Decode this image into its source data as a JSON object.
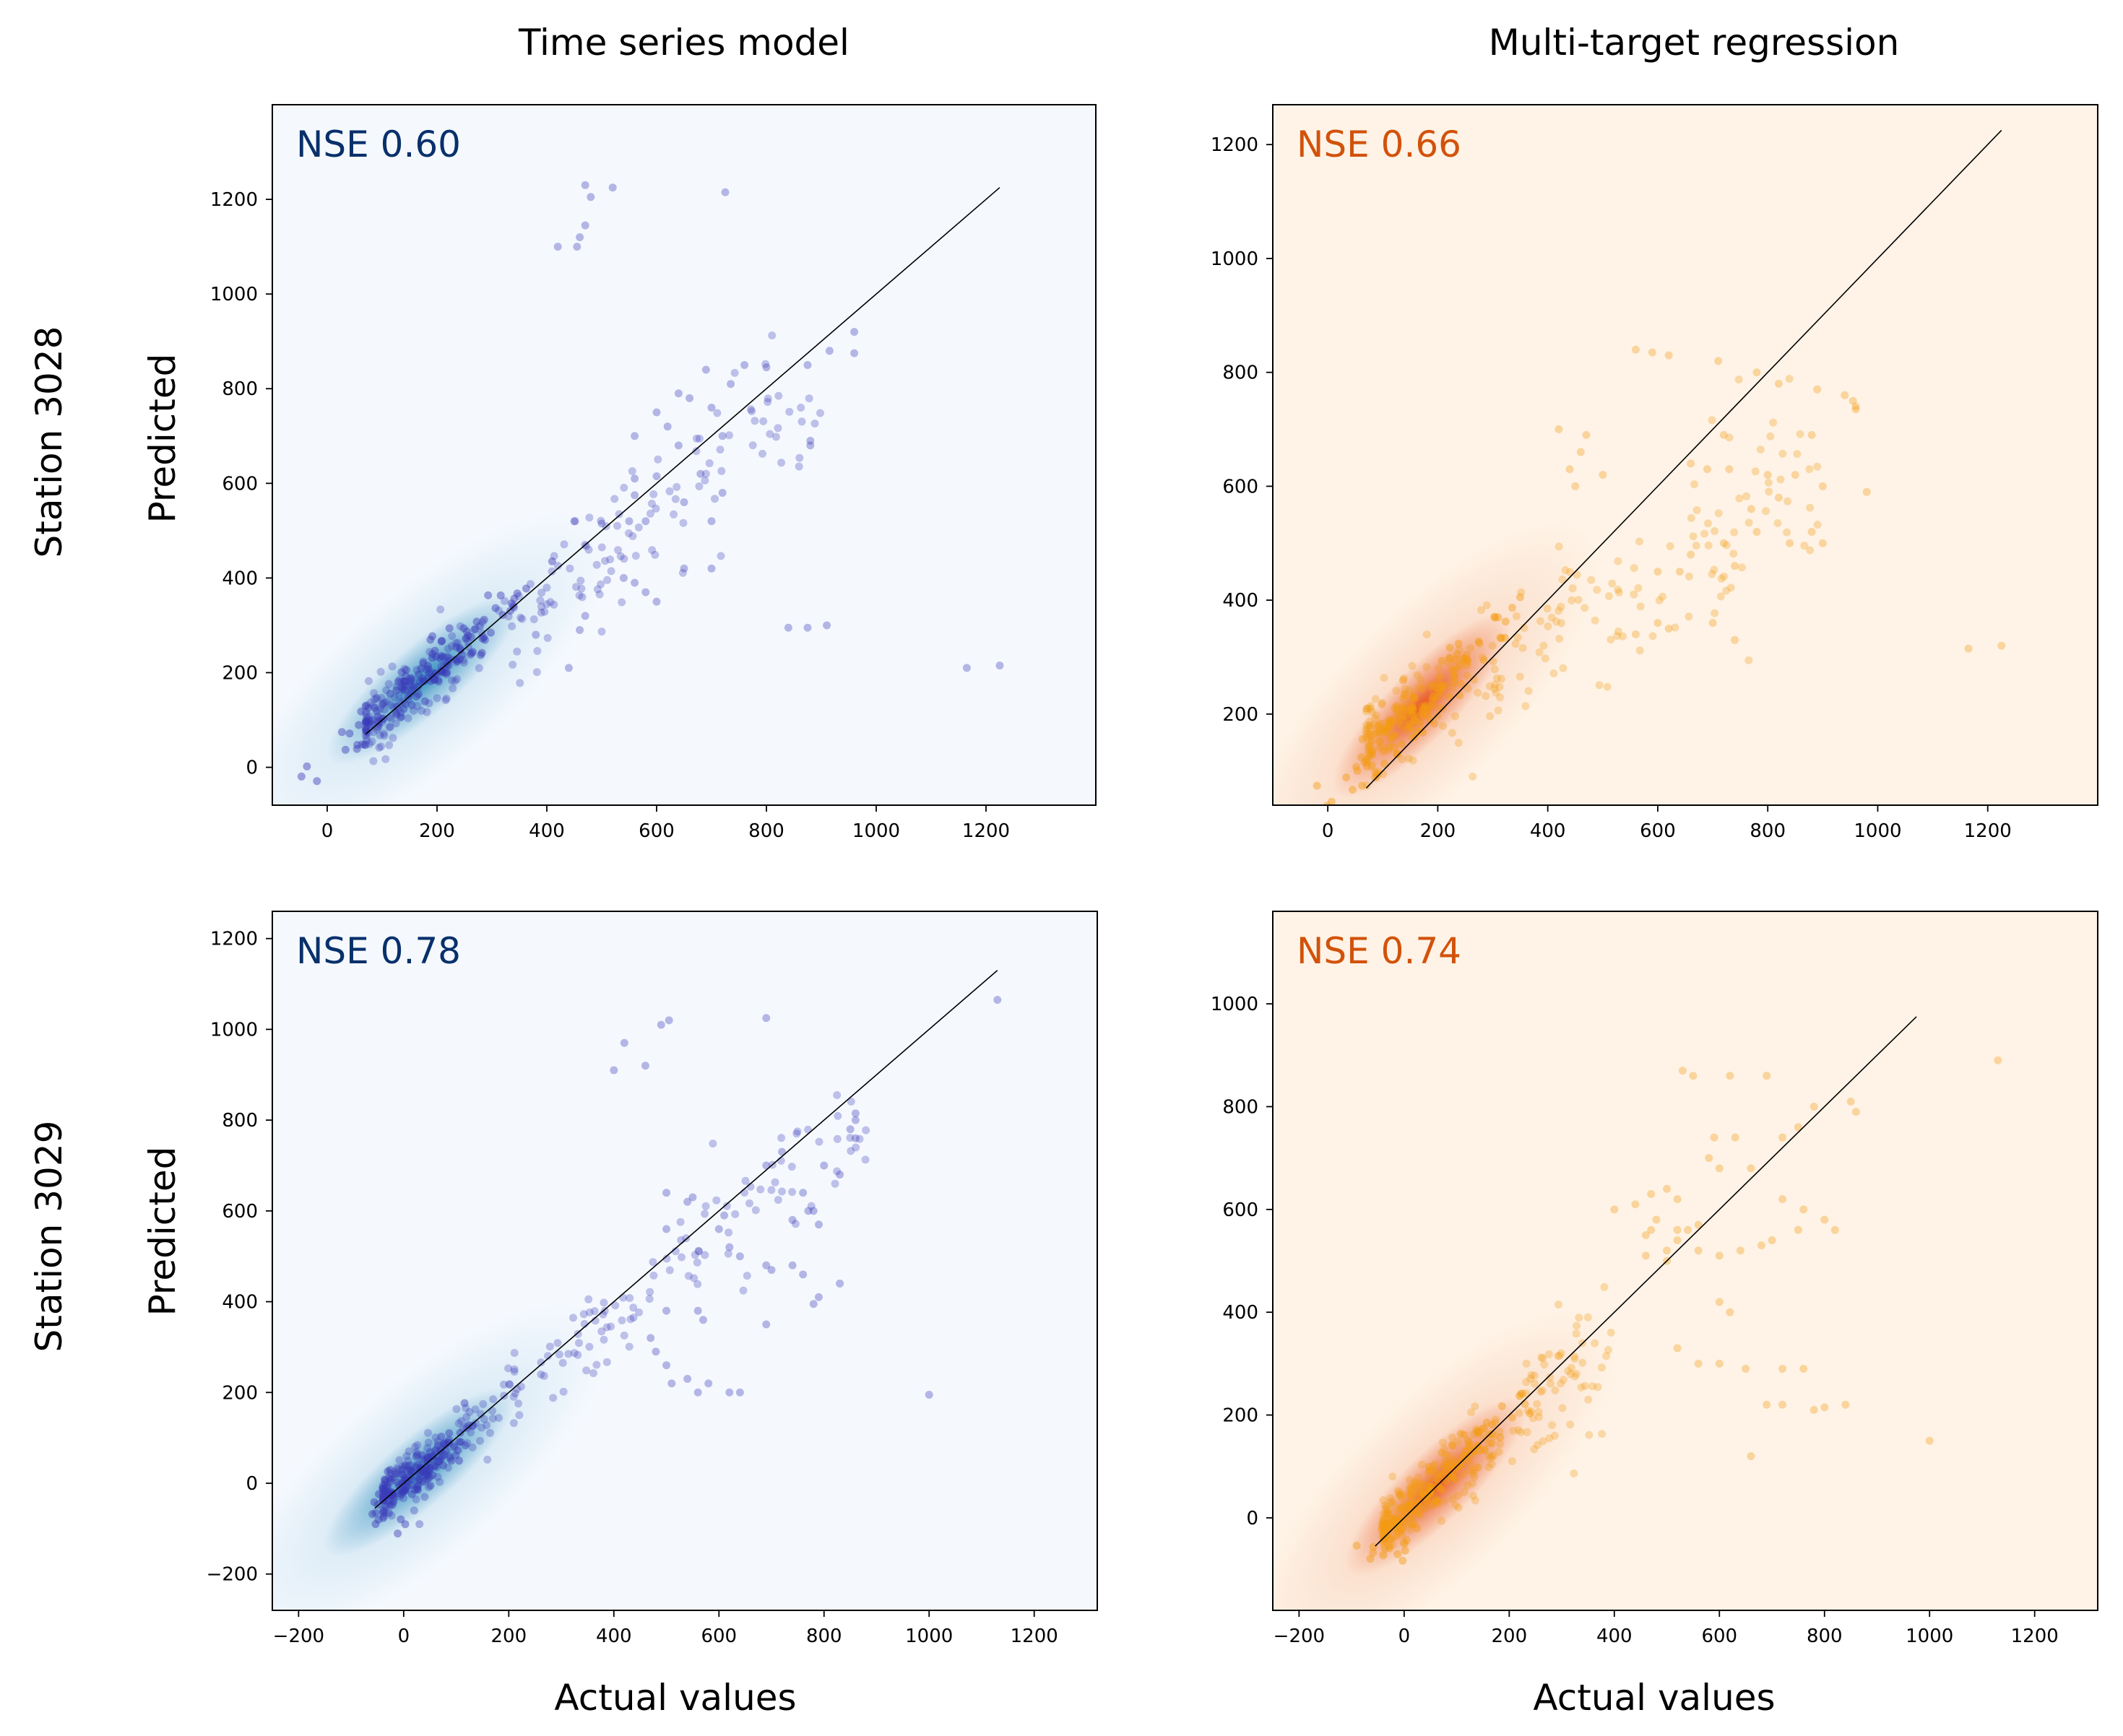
{
  "figure": {
    "column_titles": [
      "Time series model",
      "Multi-target regression"
    ],
    "row_labels": [
      "Station 3028",
      "Station 3029"
    ],
    "xlabel": "Actual values",
    "ylabel": "Predicted"
  },
  "chart_data": [
    {
      "type": "scatter",
      "panel": "top-left",
      "model": "Time series model",
      "station": "Station 3028",
      "annotation": "NSE 0.60",
      "color": "#08306b",
      "point_color": "#3a3ab8",
      "bg_color": "#f5f9fe",
      "density_color": "#2b8cbe",
      "xlim": [
        -100,
        1400
      ],
      "ylim": [
        -80,
        1400
      ],
      "xticks": [
        0,
        200,
        400,
        600,
        800,
        1000,
        1200
      ],
      "yticks": [
        0,
        200,
        400,
        600,
        800,
        1000,
        1200
      ],
      "identity_line": [
        70,
        1225
      ],
      "core": {
        "x": 175,
        "y": 185,
        "len": 170,
        "wid": 45
      },
      "cloud": {
        "xmin": 70,
        "xmax": 900,
        "slope": 0.85,
        "intercept": 30,
        "spread": 60
      },
      "points": [
        [
          470,
          1230
        ],
        [
          520,
          1225
        ],
        [
          480,
          1205
        ],
        [
          725,
          1215
        ],
        [
          470,
          1145
        ],
        [
          460,
          1120
        ],
        [
          455,
          1100
        ],
        [
          420,
          1100
        ],
        [
          960,
          920
        ],
        [
          960,
          875
        ],
        [
          915,
          880
        ],
        [
          875,
          850
        ],
        [
          800,
          845
        ],
        [
          760,
          850
        ],
        [
          735,
          810
        ],
        [
          690,
          840
        ],
        [
          640,
          790
        ],
        [
          660,
          780
        ],
        [
          700,
          760
        ],
        [
          600,
          750
        ],
        [
          620,
          720
        ],
        [
          720,
          700
        ],
        [
          880,
          690
        ],
        [
          880,
          680
        ],
        [
          640,
          680
        ],
        [
          560,
          700
        ],
        [
          680,
          620
        ],
        [
          600,
          615
        ],
        [
          560,
          610
        ],
        [
          720,
          580
        ],
        [
          560,
          575
        ],
        [
          650,
          560
        ],
        [
          700,
          520
        ],
        [
          580,
          520
        ],
        [
          550,
          520
        ],
        [
          500,
          515
        ],
        [
          450,
          520
        ],
        [
          560,
          390
        ],
        [
          580,
          370
        ],
        [
          600,
          350
        ],
        [
          540,
          400
        ],
        [
          650,
          420
        ],
        [
          700,
          420
        ],
        [
          840,
          295
        ],
        [
          875,
          295
        ],
        [
          910,
          300
        ],
        [
          1165,
          210
        ],
        [
          1225,
          215
        ],
        [
          440,
          210
        ],
        [
          460,
          290
        ],
        [
          470,
          320
        ],
        [
          380,
          280
        ]
      ]
    },
    {
      "type": "scatter",
      "panel": "top-right",
      "model": "Multi-target regression",
      "station": "Station 3028",
      "annotation": "NSE 0.66",
      "color": "#d2520b",
      "point_color": "#f39c12",
      "bg_color": "#fef3e6",
      "density_color": "#e8531a",
      "xlim": [
        -100,
        1400
      ],
      "ylim": [
        40,
        1270
      ],
      "xticks": [
        0,
        200,
        400,
        600,
        800,
        1000,
        1200
      ],
      "yticks": [
        200,
        400,
        600,
        800,
        1000,
        1200
      ],
      "identity_line": [
        70,
        1225
      ],
      "core": {
        "x": 170,
        "y": 215,
        "len": 150,
        "wid": 40
      },
      "cloud": {
        "xmin": 70,
        "xmax": 900,
        "slope": 0.55,
        "intercept": 120,
        "spread": 70
      },
      "points": [
        [
          560,
          840
        ],
        [
          590,
          835
        ],
        [
          620,
          830
        ],
        [
          710,
          820
        ],
        [
          780,
          800
        ],
        [
          820,
          780
        ],
        [
          890,
          770
        ],
        [
          940,
          760
        ],
        [
          960,
          740
        ],
        [
          960,
          735
        ],
        [
          955,
          750
        ],
        [
          880,
          690
        ],
        [
          720,
          690
        ],
        [
          660,
          640
        ],
        [
          690,
          630
        ],
        [
          730,
          630
        ],
        [
          800,
          620
        ],
        [
          850,
          620
        ],
        [
          900,
          600
        ],
        [
          980,
          590
        ],
        [
          820,
          580
        ],
        [
          770,
          560
        ],
        [
          880,
          520
        ],
        [
          900,
          500
        ],
        [
          840,
          500
        ],
        [
          780,
          520
        ],
        [
          720,
          500
        ],
        [
          660,
          480
        ],
        [
          600,
          450
        ],
        [
          640,
          450
        ],
        [
          740,
          460
        ],
        [
          460,
          660
        ],
        [
          470,
          690
        ],
        [
          440,
          630
        ],
        [
          420,
          700
        ],
        [
          500,
          620
        ],
        [
          450,
          600
        ],
        [
          1165,
          315
        ],
        [
          1225,
          320
        ],
        [
          600,
          360
        ],
        [
          620,
          350
        ],
        [
          560,
          340
        ],
        [
          700,
          360
        ],
        [
          740,
          330
        ]
      ]
    },
    {
      "type": "scatter",
      "panel": "bottom-left",
      "model": "Time series model",
      "station": "Station 3029",
      "annotation": "NSE 0.78",
      "color": "#08306b",
      "point_color": "#3a3ab8",
      "bg_color": "#f5f9fe",
      "density_color": "#2b8cbe",
      "xlim": [
        -250,
        1320
      ],
      "ylim": [
        -280,
        1260
      ],
      "xticks": [
        -200,
        0,
        200,
        400,
        600,
        800,
        1000,
        1200
      ],
      "yticks": [
        -200,
        0,
        200,
        400,
        600,
        800,
        1000,
        1200
      ],
      "identity_line": [
        -55,
        1130
      ],
      "core": {
        "x": 30,
        "y": 25,
        "len": 80,
        "wid": 45
      },
      "cloud": {
        "xmin": -40,
        "xmax": 880,
        "slope": 0.9,
        "intercept": 10,
        "spread": 55
      },
      "points": [
        [
          1130,
          1065
        ],
        [
          690,
          1025
        ],
        [
          505,
          1020
        ],
        [
          490,
          1010
        ],
        [
          420,
          970
        ],
        [
          460,
          920
        ],
        [
          400,
          910
        ],
        [
          860,
          815
        ],
        [
          860,
          800
        ],
        [
          850,
          780
        ],
        [
          860,
          760
        ],
        [
          720,
          730
        ],
        [
          690,
          700
        ],
        [
          800,
          700
        ],
        [
          830,
          680
        ],
        [
          760,
          640
        ],
        [
          770,
          600
        ],
        [
          780,
          600
        ],
        [
          790,
          570
        ],
        [
          740,
          580
        ],
        [
          610,
          590
        ],
        [
          600,
          560
        ],
        [
          500,
          560
        ],
        [
          500,
          640
        ],
        [
          550,
          630
        ],
        [
          540,
          620
        ],
        [
          620,
          520
        ],
        [
          640,
          500
        ],
        [
          690,
          480
        ],
        [
          700,
          470
        ],
        [
          740,
          480
        ],
        [
          760,
          460
        ],
        [
          830,
          440
        ],
        [
          790,
          410
        ],
        [
          780,
          395
        ],
        [
          690,
          350
        ],
        [
          570,
          360
        ],
        [
          560,
          380
        ],
        [
          500,
          380
        ],
        [
          470,
          320
        ],
        [
          480,
          290
        ],
        [
          500,
          260
        ],
        [
          540,
          230
        ],
        [
          580,
          220
        ],
        [
          510,
          220
        ],
        [
          560,
          200
        ],
        [
          620,
          200
        ],
        [
          640,
          200
        ],
        [
          1000,
          195
        ],
        [
          30,
          -90
        ],
        [
          20,
          -60
        ],
        [
          40,
          -30
        ]
      ]
    },
    {
      "type": "scatter",
      "panel": "bottom-right",
      "model": "Multi-target regression",
      "station": "Station 3029",
      "annotation": "NSE 0.74",
      "color": "#d2520b",
      "point_color": "#f39c12",
      "bg_color": "#fef3e6",
      "density_color": "#e8531a",
      "xlim": [
        -250,
        1320
      ],
      "ylim": [
        -180,
        1180
      ],
      "xticks": [
        -200,
        0,
        200,
        400,
        600,
        800,
        1000,
        1200
      ],
      "yticks": [
        0,
        200,
        400,
        600,
        800,
        1000
      ],
      "identity_line": [
        -55,
        975
      ],
      "core": {
        "x": 60,
        "y": 60,
        "len": 130,
        "wid": 45
      },
      "cloud": {
        "xmin": -40,
        "xmax": 400,
        "slope": 0.85,
        "intercept": 15,
        "spread": 50
      },
      "points": [
        [
          1130,
          890
        ],
        [
          530,
          870
        ],
        [
          550,
          860
        ],
        [
          620,
          860
        ],
        [
          690,
          860
        ],
        [
          850,
          810
        ],
        [
          860,
          790
        ],
        [
          780,
          800
        ],
        [
          750,
          760
        ],
        [
          720,
          740
        ],
        [
          630,
          740
        ],
        [
          590,
          740
        ],
        [
          580,
          700
        ],
        [
          600,
          680
        ],
        [
          660,
          680
        ],
        [
          720,
          620
        ],
        [
          760,
          600
        ],
        [
          800,
          580
        ],
        [
          820,
          560
        ],
        [
          750,
          560
        ],
        [
          700,
          540
        ],
        [
          680,
          530
        ],
        [
          640,
          520
        ],
        [
          600,
          510
        ],
        [
          560,
          520
        ],
        [
          500,
          520
        ],
        [
          460,
          510
        ],
        [
          470,
          560
        ],
        [
          520,
          560
        ],
        [
          480,
          580
        ],
        [
          400,
          600
        ],
        [
          440,
          610
        ],
        [
          520,
          620
        ],
        [
          500,
          640
        ],
        [
          470,
          630
        ],
        [
          460,
          550
        ],
        [
          540,
          560
        ],
        [
          560,
          570
        ],
        [
          520,
          540
        ],
        [
          500,
          500
        ],
        [
          600,
          420
        ],
        [
          620,
          400
        ],
        [
          520,
          330
        ],
        [
          560,
          300
        ],
        [
          600,
          300
        ],
        [
          650,
          290
        ],
        [
          720,
          290
        ],
        [
          760,
          290
        ],
        [
          690,
          220
        ],
        [
          720,
          220
        ],
        [
          780,
          210
        ],
        [
          800,
          215
        ],
        [
          840,
          220
        ],
        [
          660,
          120
        ],
        [
          1000,
          150
        ]
      ]
    }
  ]
}
